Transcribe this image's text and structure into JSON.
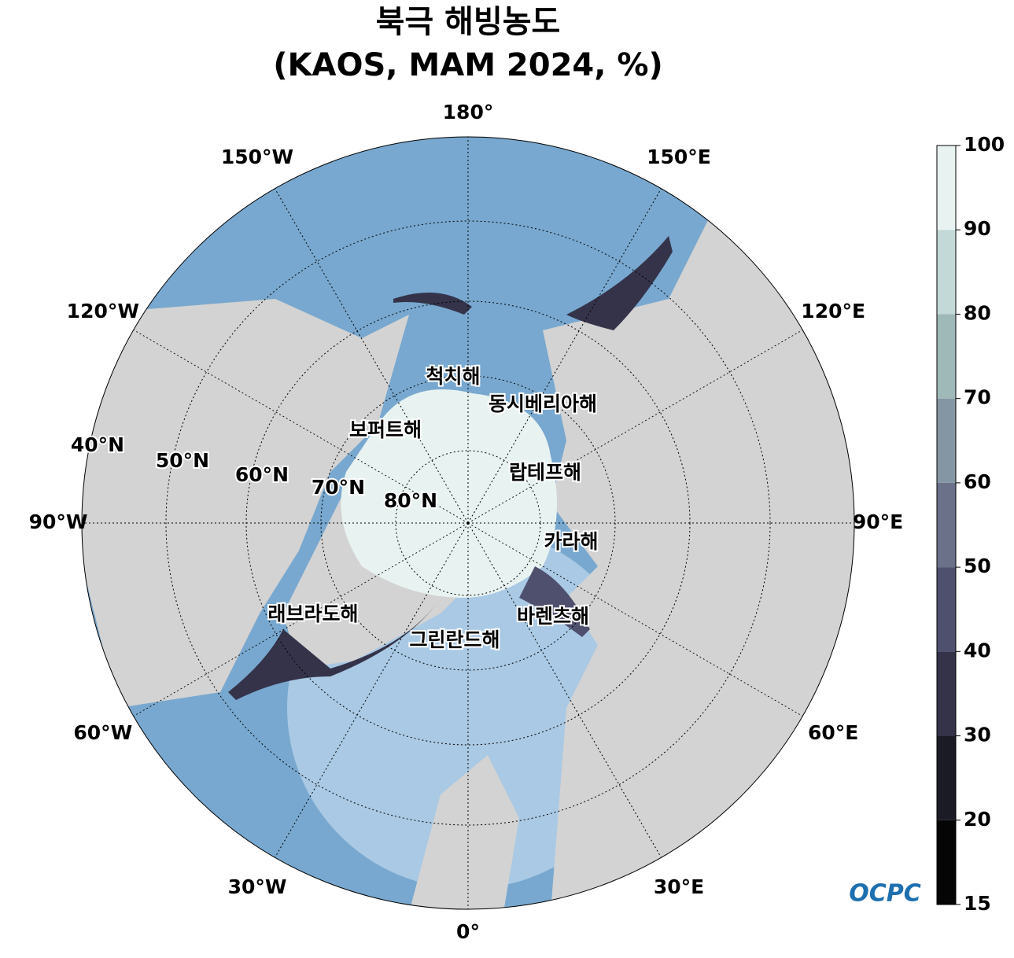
{
  "map": {
    "title": [
      "북극 해빙농도",
      "(KAOS, MAM 2024, %)"
    ],
    "longitude_labels": [
      "180°",
      "150°E",
      "120°E",
      "90°E",
      "60°E",
      "30°E",
      "0°",
      "30°W",
      "60°W",
      "90°W",
      "120°W",
      "150°W"
    ],
    "latitude_labels": [
      "40°N",
      "50°N",
      "60°N",
      "70°N",
      "80°N"
    ],
    "sea_labels": [
      "척치해",
      "동시베리아해",
      "보퍼트해",
      "랍테프해",
      "카라해",
      "래브라도해",
      "바렌츠해",
      "그린란드해"
    ],
    "colorbar": {
      "ticks": [
        15,
        20,
        30,
        40,
        50,
        60,
        70,
        80,
        90,
        100
      ],
      "colors": [
        "#050505",
        "#1b1b25",
        "#34334a",
        "#4f4f6e",
        "#6a7189",
        "#8496a3",
        "#9fb8b8",
        "#c3d9d7",
        "#e8f3f1"
      ]
    },
    "logo": "OCPC"
  }
}
